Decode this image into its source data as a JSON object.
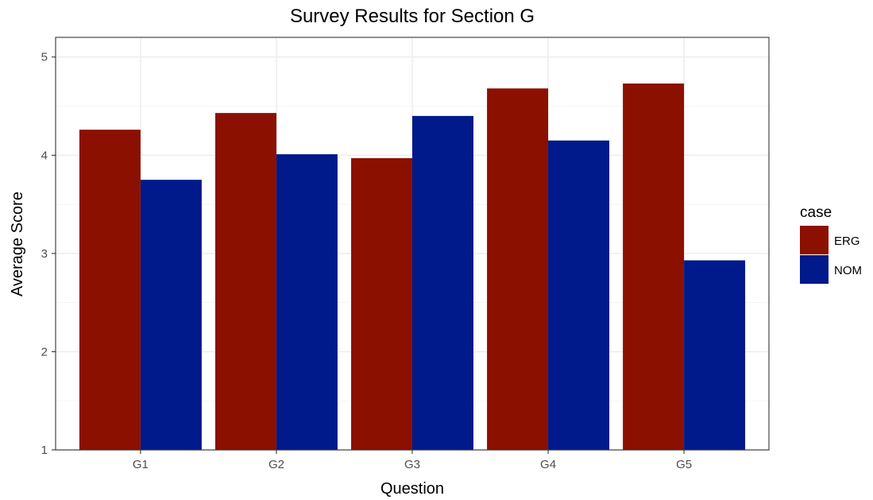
{
  "chart_data": {
    "type": "bar",
    "title": "Survey Results for Section G",
    "xlabel": "Question",
    "ylabel": "Average Score",
    "categories": [
      "G1",
      "G2",
      "G3",
      "G4",
      "G5"
    ],
    "series": [
      {
        "name": "ERG",
        "color": "#8b1000",
        "values": [
          4.26,
          4.43,
          3.97,
          4.68,
          4.73
        ]
      },
      {
        "name": "NOM",
        "color": "#00198b",
        "values": [
          3.75,
          4.01,
          4.4,
          4.15,
          2.93
        ]
      }
    ],
    "y_ticks": [
      "1",
      "2",
      "3",
      "4",
      "5"
    ],
    "ylim": [
      1,
      5.2
    ],
    "grid": true,
    "legend": {
      "title": "case",
      "position": "right"
    }
  }
}
